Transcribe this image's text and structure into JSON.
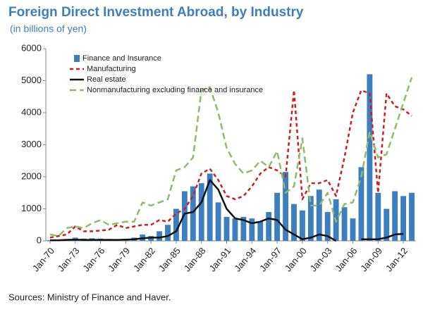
{
  "chart_data": {
    "type": "bar-line",
    "title": "Foreign Direct Investment Abroad, by Industry",
    "subtitle": "(in billions of yen)",
    "source": "Sources: Ministry of Finance and Haver.",
    "categories": [
      "Jan-70",
      null,
      null,
      "Jan-73",
      null,
      null,
      "Jan-76",
      null,
      null,
      "Jan-79",
      null,
      null,
      "Jan-82",
      null,
      null,
      "Jan-85",
      null,
      null,
      "Jan-88",
      null,
      null,
      "Jan-91",
      null,
      null,
      "Jan-94",
      null,
      null,
      "Jan-97",
      null,
      null,
      "Jan-00",
      null,
      null,
      "Jan-03",
      null,
      null,
      "Jan-06",
      null,
      null,
      "Jan-09",
      null,
      null,
      "Jan-12",
      null
    ],
    "series": [
      {
        "name": "Finance and Insurance",
        "kind": "bar",
        "color": "#3d7ebf",
        "values": [
          20,
          30,
          60,
          100,
          70,
          80,
          70,
          60,
          50,
          60,
          100,
          200,
          150,
          300,
          500,
          1000,
          1550,
          1700,
          1800,
          2100,
          1200,
          750,
          700,
          750,
          700,
          600,
          900,
          1500,
          2150,
          1150,
          950,
          1400,
          1600,
          900,
          1300,
          1050,
          700,
          2300,
          5200,
          1500,
          1000,
          1550,
          1400,
          1500
        ]
      },
      {
        "name": "Manufacturing",
        "kind": "line",
        "dash": "5,4",
        "color": "#cc1f1f",
        "values": [
          100,
          150,
          200,
          450,
          300,
          300,
          320,
          350,
          500,
          400,
          450,
          500,
          500,
          650,
          600,
          850,
          1000,
          1400,
          2100,
          2250,
          1900,
          1400,
          1300,
          1400,
          1700,
          2100,
          2300,
          2200,
          2000,
          4700,
          1300,
          1800,
          1800,
          1900,
          1400,
          2600,
          4000,
          4700,
          4600,
          1500,
          4600,
          4200,
          4100,
          3900
        ]
      },
      {
        "name": "Real estate",
        "kind": "line",
        "dash": "none",
        "color": "#111111",
        "values": [
          20,
          20,
          30,
          40,
          30,
          30,
          30,
          30,
          30,
          40,
          50,
          80,
          100,
          100,
          150,
          300,
          850,
          900,
          1200,
          1900,
          1600,
          1000,
          700,
          650,
          550,
          600,
          700,
          650,
          350,
          200,
          50,
          100,
          200,
          150,
          0,
          null,
          null,
          50,
          50,
          50,
          100,
          200,
          220,
          null
        ]
      },
      {
        "name": "Nonmanufacturing excluding finance and insurance",
        "kind": "line",
        "dash": "9,5",
        "color": "#8fbc6a",
        "values": [
          200,
          150,
          400,
          450,
          400,
          550,
          650,
          500,
          550,
          600,
          600,
          1200,
          1100,
          1200,
          1300,
          2200,
          2300,
          2600,
          4700,
          4800,
          4000,
          2900,
          2400,
          2100,
          2200,
          2500,
          2300,
          2800,
          1500,
          1700,
          3200,
          1100,
          1100,
          1500,
          600,
          1150,
          1200,
          2000,
          3400,
          2600,
          2700,
          3500,
          4300,
          5100
        ]
      }
    ],
    "ylim": [
      0,
      6000
    ],
    "yticks": [
      0,
      1000,
      2000,
      3000,
      4000,
      5000,
      6000
    ],
    "grid": false,
    "legend": "top-left"
  }
}
